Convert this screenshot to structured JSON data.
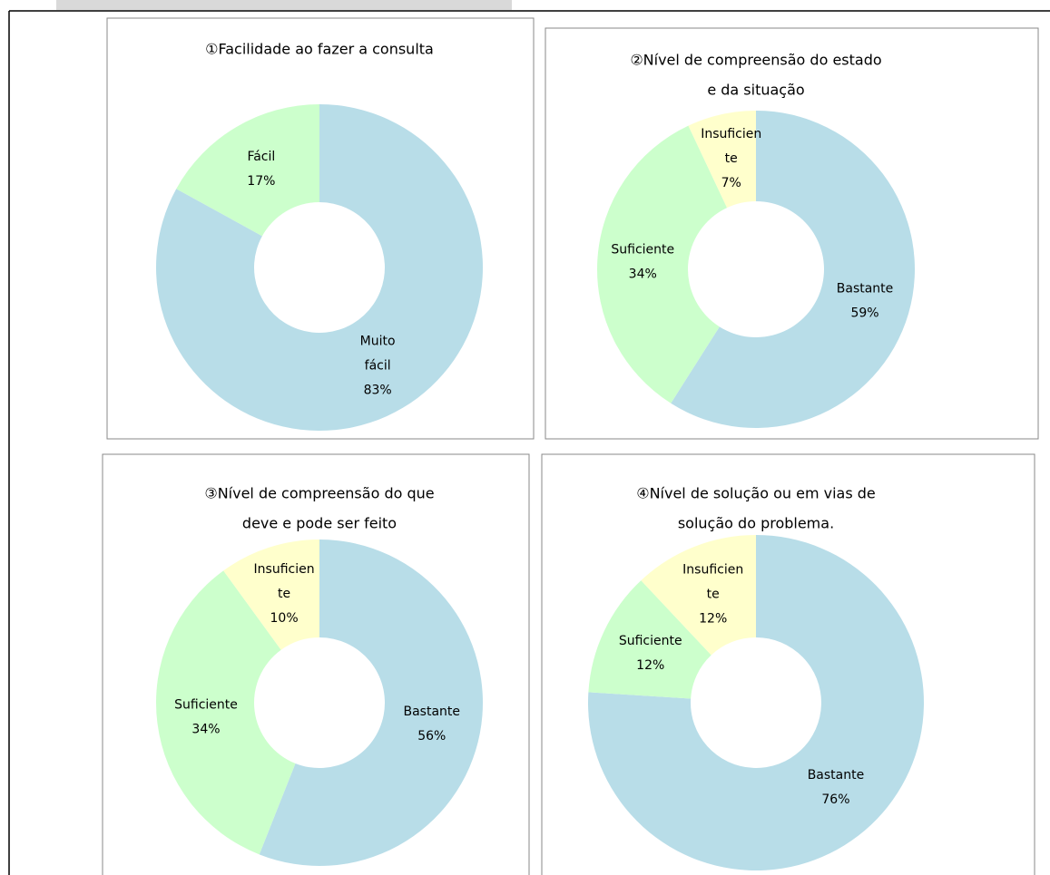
{
  "chart_data": [
    {
      "type": "donut",
      "title": [
        "①Facilidade ao fazer a consulta"
      ],
      "categories": [
        [
          "Muito",
          "fácil"
        ],
        [
          "Fácil"
        ]
      ],
      "values": [
        83,
        17
      ],
      "value_labels": [
        "83%",
        "17%"
      ],
      "colors": [
        "#b8dde8",
        "#ccffcc"
      ]
    },
    {
      "type": "donut",
      "title": [
        "②Nível de compreensão do estado",
        "e da situação"
      ],
      "categories": [
        [
          "Bastante"
        ],
        [
          "Suficiente"
        ],
        [
          "Insuficien",
          "te"
        ]
      ],
      "values": [
        59,
        34,
        7
      ],
      "value_labels": [
        "59%",
        "34%",
        "7%"
      ],
      "colors": [
        "#b8dde8",
        "#ccffcc",
        "#ffffcc"
      ]
    },
    {
      "type": "donut",
      "title": [
        "③Nível de compreensão do que",
        "deve e pode ser feito"
      ],
      "categories": [
        [
          "Bastante"
        ],
        [
          "Suficiente"
        ],
        [
          "Insuficien",
          "te"
        ]
      ],
      "values": [
        56,
        34,
        10
      ],
      "value_labels": [
        "56%",
        "34%",
        "10%"
      ],
      "colors": [
        "#b8dde8",
        "#ccffcc",
        "#ffffcc"
      ]
    },
    {
      "type": "donut",
      "title": [
        "④Nível de solução ou em vias de",
        "solução do problema."
      ],
      "categories": [
        [
          "Bastante"
        ],
        [
          "Suficiente"
        ],
        [
          "Insuficien",
          "te"
        ]
      ],
      "values": [
        76,
        12,
        12
      ],
      "value_labels": [
        "76%",
        "12%",
        "12%"
      ],
      "colors": [
        "#b8dde8",
        "#ccffcc",
        "#ffffcc"
      ]
    }
  ]
}
